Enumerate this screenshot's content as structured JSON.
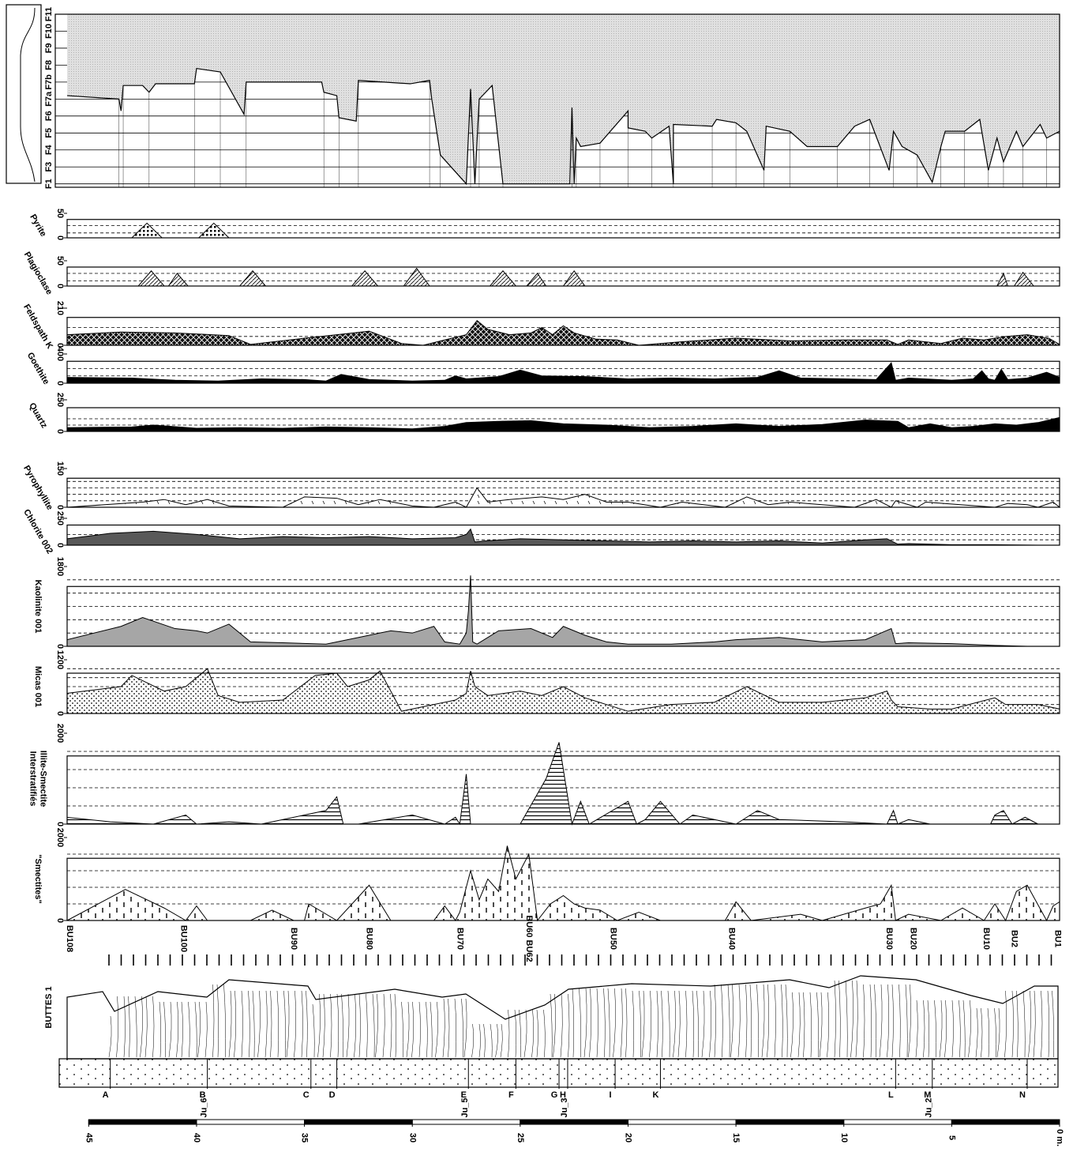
{
  "chart_data": [
    {
      "type": "facies",
      "xlim": [
        46,
        0
      ],
      "ylim": [
        0.8,
        11
      ],
      "yticks": [
        {
          "value": 1,
          "label": "F1"
        },
        {
          "value": 2,
          "label": "F3"
        },
        {
          "value": 3,
          "label": "F4"
        },
        {
          "value": 4,
          "label": "F5"
        },
        {
          "value": 5,
          "label": "F6"
        },
        {
          "value": 6,
          "label": "F7a"
        },
        {
          "value": 7,
          "label": "F7b"
        },
        {
          "value": 8,
          "label": "F8"
        },
        {
          "value": 9,
          "label": "F9"
        },
        {
          "value": 10,
          "label": "F10"
        },
        {
          "value": 11,
          "label": "F11"
        }
      ],
      "color": "#d9d9d9",
      "x": [
        46,
        43.6,
        43.5,
        43.4,
        42.5,
        42.2,
        41.9,
        40.1,
        40.0,
        38.9,
        37.8,
        37.7,
        34.2,
        34.1,
        33.5,
        33.4,
        32.6,
        32.5,
        30.1,
        29.2,
        29.1,
        28.7,
        27.5,
        27.3,
        27.1,
        26.9,
        26.3,
        25.8,
        22.7,
        22.6,
        22.5,
        22.4,
        22.2,
        21.3,
        20.0,
        20.0,
        19.2,
        18.9,
        18.1,
        17.9,
        17.9,
        16.1,
        15.9,
        15.0,
        14.5,
        13.7,
        13.6,
        12.5,
        11.7,
        10.3,
        9.5,
        8.8,
        7.9,
        7.7,
        7.3,
        6.6,
        5.9,
        5.5,
        5.3,
        4.4,
        3.7,
        3.3,
        2.9,
        2.6,
        2.0,
        1.7,
        0.9,
        0.6,
        0
      ],
      "values": [
        6.2,
        6.0,
        5.3,
        6.8,
        6.8,
        6.4,
        6.9,
        6.9,
        7.8,
        7.6,
        5.1,
        7.0,
        7.0,
        6.4,
        6.2,
        4.9,
        4.7,
        7.1,
        6.9,
        7.1,
        6.0,
        2.7,
        1,
        6.6,
        1,
        6.0,
        6.8,
        1,
        1,
        5.5,
        1,
        3.7,
        3.2,
        3.4,
        5.3,
        4.3,
        4.1,
        3.7,
        4.4,
        1,
        4.5,
        4.4,
        4.8,
        4.6,
        4.1,
        1.8,
        4.4,
        4.1,
        3.2,
        3.2,
        4.4,
        4.8,
        1.8,
        4.1,
        3.2,
        2.7,
        1.1,
        3.2,
        4.1,
        4.1,
        4.8,
        1.8,
        3.7,
        2.3,
        4.1,
        3.2,
        4.5,
        3.7,
        4.1
      ]
    },
    {
      "type": "area",
      "label": [
        "Pyrite"
      ],
      "xlim": [
        46,
        0
      ],
      "ylim": [
        0,
        50
      ],
      "yticks": [
        0,
        50
      ],
      "gridlines": [
        10,
        25
      ],
      "color": "#ffffff",
      "pattern": "dots-dense",
      "x": [
        46,
        43.0,
        42.3,
        41.6,
        39.9,
        39.2,
        38.5,
        0
      ],
      "values": [
        0,
        0,
        30,
        0,
        0,
        30,
        0,
        0
      ]
    },
    {
      "type": "area",
      "label": [
        "Plagioclase"
      ],
      "xlim": [
        46,
        0
      ],
      "ylim": [
        0,
        50
      ],
      "yticks": [
        0,
        50
      ],
      "gridlines": [
        10,
        25
      ],
      "color": "#ffffff",
      "pattern": "hatch",
      "x": [
        46,
        42.7,
        42.1,
        41.5,
        41.3,
        40.9,
        40.4,
        38.0,
        37.4,
        36.8,
        32.8,
        32.2,
        31.6,
        30.4,
        29.8,
        29.2,
        26.4,
        25.8,
        25.2,
        24.7,
        24.2,
        23.8,
        23.0,
        22.5,
        22.0,
        2.9,
        2.6,
        2.4,
        2.1,
        1.7,
        1.2,
        0
      ],
      "values": [
        0,
        0,
        30,
        0,
        0,
        25,
        0,
        0,
        30,
        0,
        0,
        30,
        0,
        0,
        35,
        0,
        0,
        30,
        0,
        0,
        25,
        0,
        0,
        30,
        0,
        0,
        25,
        0,
        0,
        27,
        0,
        0
      ]
    },
    {
      "type": "area",
      "label": [
        "Feldspath K"
      ],
      "xlim": [
        46,
        0
      ],
      "ylim": [
        0,
        210
      ],
      "yticks": [
        0,
        210
      ],
      "gridlines": [
        50,
        100
      ],
      "color": "#111111",
      "pattern": "cross",
      "x": [
        46,
        43.5,
        41,
        38.5,
        37.5,
        35,
        33.5,
        32,
        30.5,
        29.5,
        28.5,
        27.5,
        27,
        26.5,
        25.5,
        24.5,
        24,
        23.5,
        23,
        22.5,
        21.5,
        20.5,
        19.5,
        17.5,
        15,
        12.5,
        10,
        8,
        7.5,
        7,
        5.5,
        4.5,
        3.5,
        2.5,
        1.5,
        0.5,
        0
      ],
      "values": [
        60,
        75,
        70,
        55,
        5,
        40,
        60,
        80,
        10,
        0,
        30,
        60,
        140,
        90,
        60,
        70,
        100,
        60,
        110,
        70,
        35,
        30,
        0,
        20,
        40,
        25,
        30,
        30,
        5,
        30,
        10,
        40,
        30,
        50,
        60,
        40,
        5
      ]
    },
    {
      "type": "area",
      "label": [
        "Goethite"
      ],
      "xlim": [
        46,
        0
      ],
      "ylim": [
        0,
        400
      ],
      "yticks": [
        0,
        400
      ],
      "gridlines": [
        100,
        200
      ],
      "color": "#000000",
      "pattern": "none",
      "x": [
        46,
        43,
        41,
        39,
        37,
        35,
        34,
        33.3,
        32,
        30,
        28.5,
        28,
        27.5,
        26,
        25,
        24,
        22,
        20,
        18,
        16,
        14,
        13,
        12,
        10,
        8.5,
        7.8,
        7.6,
        7,
        5,
        4,
        3.6,
        3.3,
        3,
        2.7,
        2.4,
        1.5,
        0.6,
        0
      ],
      "values": [
        80,
        70,
        40,
        30,
        60,
        50,
        30,
        120,
        50,
        30,
        40,
        100,
        60,
        90,
        180,
        100,
        90,
        60,
        70,
        60,
        80,
        170,
        70,
        60,
        50,
        280,
        40,
        70,
        40,
        60,
        170,
        60,
        40,
        190,
        50,
        70,
        150,
        80
      ]
    },
    {
      "type": "area",
      "label": [
        "Quartz"
      ],
      "xlim": [
        46,
        0
      ],
      "ylim": [
        0,
        250
      ],
      "yticks": [
        0,
        250
      ],
      "gridlines": [
        50,
        100
      ],
      "color": "#000000",
      "pattern": "none",
      "x": [
        46,
        43,
        42,
        40,
        38,
        36,
        34,
        32,
        30,
        28.5,
        27.5,
        26,
        24.5,
        23,
        21,
        19,
        17,
        15,
        13,
        11,
        9,
        7.5,
        7,
        6,
        5,
        4,
        3,
        2,
        1,
        0
      ],
      "values": [
        30,
        35,
        50,
        25,
        30,
        25,
        35,
        30,
        20,
        40,
        70,
        80,
        85,
        60,
        50,
        30,
        40,
        60,
        40,
        55,
        90,
        80,
        30,
        60,
        30,
        40,
        60,
        50,
        70,
        110
      ]
    },
    {
      "type": "area",
      "label": [
        "Pyrophyllite"
      ],
      "xlim": [
        46,
        0
      ],
      "ylim": [
        0,
        150
      ],
      "yticks": [
        0,
        150
      ],
      "gridlines": [
        25,
        50,
        75,
        100
      ],
      "color": "#ffffff",
      "pattern": "dashes",
      "x": [
        46,
        42.5,
        41.5,
        40.5,
        39.5,
        38.5,
        36,
        35,
        33.5,
        32.5,
        31.5,
        30,
        29,
        28,
        27.5,
        27,
        26.5,
        25.5,
        24,
        23,
        22,
        21,
        20,
        18.5,
        17.5,
        15.5,
        14.5,
        13.5,
        12.5,
        9.5,
        8.5,
        7.8,
        7.6,
        6.6,
        6.2,
        3,
        2.4,
        1.5,
        1,
        0.3,
        0
      ],
      "values": [
        0,
        20,
        30,
        10,
        30,
        5,
        0,
        40,
        35,
        10,
        30,
        5,
        0,
        20,
        0,
        75,
        20,
        30,
        40,
        30,
        50,
        20,
        20,
        0,
        20,
        0,
        40,
        10,
        20,
        0,
        30,
        0,
        25,
        0,
        20,
        0,
        15,
        10,
        0,
        20,
        0
      ]
    },
    {
      "type": "area",
      "label": [
        "Chlorite 002"
      ],
      "xlim": [
        46,
        0
      ],
      "ylim": [
        0,
        250
      ],
      "yticks": [
        0,
        250
      ],
      "gridlines": [
        50,
        100
      ],
      "color": "#595959",
      "pattern": "none",
      "x": [
        46,
        44,
        42,
        40,
        38,
        36,
        34,
        32,
        30,
        28,
        27.5,
        27.3,
        27.1,
        26.6,
        25,
        23,
        21,
        19,
        17,
        15,
        13,
        11,
        9,
        8,
        7.5,
        7,
        5,
        3,
        1,
        0
      ],
      "values": [
        60,
        110,
        130,
        100,
        60,
        80,
        70,
        80,
        60,
        70,
        100,
        150,
        30,
        40,
        60,
        50,
        40,
        30,
        40,
        30,
        40,
        20,
        50,
        60,
        10,
        15,
        5,
        5,
        0,
        0
      ]
    },
    {
      "type": "area",
      "label": [
        "Kaolinite 001"
      ],
      "xlim": [
        46,
        0
      ],
      "ylim": [
        0,
        1800
      ],
      "yticks": [
        0,
        1800
      ],
      "gridlines": [
        300,
        600,
        900,
        1200,
        1500
      ],
      "color": "#a6a6a6",
      "pattern": "none",
      "x": [
        46,
        43.5,
        42.5,
        41,
        40,
        39.5,
        38.5,
        37.5,
        36,
        34,
        33,
        32,
        31.5,
        31,
        30,
        29,
        28.5,
        27.8,
        27.5,
        27.4,
        27.3,
        27.2,
        27.0,
        26,
        24.5,
        23.5,
        23,
        22,
        21,
        20,
        18,
        16,
        15,
        13,
        11,
        9,
        7.8,
        7.6,
        7,
        5,
        3,
        1.5,
        0
      ],
      "values": [
        150,
        450,
        650,
        400,
        350,
        300,
        500,
        100,
        80,
        50,
        150,
        250,
        300,
        350,
        300,
        450,
        100,
        50,
        300,
        800,
        1600,
        100,
        50,
        350,
        400,
        200,
        450,
        250,
        100,
        50,
        50,
        100,
        150,
        200,
        100,
        150,
        400,
        60,
        80,
        60,
        20,
        0,
        0
      ]
    },
    {
      "type": "area",
      "label": [
        "Micas 001"
      ],
      "xlim": [
        46,
        0
      ],
      "ylim": [
        0,
        1200
      ],
      "yticks": [
        0,
        1200
      ],
      "gridlines": [
        200,
        400,
        600,
        800,
        1000
      ],
      "color": "#ffffff",
      "pattern": "dots",
      "x": [
        46,
        43.5,
        43,
        41.5,
        40.5,
        39.5,
        39,
        38,
        36,
        34.5,
        33.5,
        33,
        32,
        31.5,
        30.5,
        29,
        28,
        27.5,
        27.3,
        27.1,
        26.5,
        25,
        24,
        23,
        22,
        21,
        20,
        18,
        16,
        14.5,
        13,
        11,
        9,
        8,
        7.8,
        7.5,
        6,
        5,
        3,
        2.5,
        1,
        0
      ],
      "values": [
        450,
        600,
        850,
        500,
        600,
        1000,
        400,
        250,
        300,
        850,
        900,
        600,
        750,
        950,
        50,
        200,
        300,
        450,
        950,
        600,
        400,
        500,
        400,
        600,
        350,
        200,
        50,
        200,
        250,
        600,
        250,
        250,
        350,
        500,
        300,
        150,
        100,
        100,
        350,
        200,
        200,
        100
      ]
    },
    {
      "type": "area",
      "label": [
        "Interstratifiés",
        "Illite-Smectite"
      ],
      "xlim": [
        46,
        0
      ],
      "ylim": [
        0,
        2000
      ],
      "yticks": [
        0,
        2000
      ],
      "gridlines": [
        400,
        800,
        1200,
        1600
      ],
      "color": "#ffffff",
      "pattern": "hlines",
      "x": [
        46,
        44,
        42,
        40.5,
        40,
        38.5,
        37,
        35,
        34,
        33.5,
        33.2,
        32.5,
        30,
        28.5,
        28,
        27.8,
        27.5,
        27.3,
        27.1,
        25,
        23.8,
        23.2,
        22.6,
        22.2,
        21.8,
        20,
        19.6,
        19.2,
        18.5,
        17.6,
        17,
        15,
        14,
        13,
        10,
        8,
        7.7,
        7.5,
        7,
        6,
        5,
        3.2,
        3,
        2.6,
        2.2,
        1.6,
        1,
        0
      ],
      "values": [
        150,
        50,
        0,
        200,
        0,
        50,
        0,
        200,
        300,
        600,
        0,
        0,
        200,
        0,
        150,
        0,
        1100,
        0,
        0,
        0,
        1000,
        1800,
        0,
        500,
        0,
        500,
        0,
        100,
        500,
        0,
        200,
        0,
        300,
        100,
        50,
        0,
        300,
        0,
        100,
        0,
        0,
        0,
        200,
        300,
        0,
        150,
        0,
        0
      ]
    },
    {
      "type": "area",
      "label": [
        "\"Smectites\""
      ],
      "xlim": [
        46,
        0
      ],
      "ylim": [
        0,
        2000
      ],
      "yticks": [
        0,
        2000
      ],
      "gridlines": [
        400,
        800,
        1200,
        1600
      ],
      "color": "#ffffff",
      "pattern": "vdashes",
      "x": [
        46,
        43.3,
        41.5,
        40.5,
        40,
        39.5,
        37.5,
        36.5,
        35.5,
        35,
        34.8,
        33.5,
        32,
        31,
        29,
        28.5,
        28,
        27.8,
        27.3,
        26.9,
        26.5,
        26,
        25.6,
        25.2,
        24.6,
        24.2,
        23.6,
        23,
        22.5,
        22,
        21.3,
        20.5,
        19.5,
        18.5,
        17,
        15.5,
        15,
        14.3,
        12,
        11,
        9,
        8.3,
        7.8,
        7.6,
        7,
        5.5,
        4.5,
        3.5,
        3,
        2.5,
        2,
        1.5,
        0.6,
        0.3,
        0
      ],
      "values": [
        0,
        750,
        300,
        0,
        350,
        0,
        0,
        250,
        0,
        0,
        400,
        0,
        850,
        0,
        0,
        350,
        0,
        200,
        1200,
        500,
        1000,
        700,
        1800,
        1000,
        1600,
        0,
        400,
        600,
        400,
        300,
        250,
        0,
        200,
        0,
        0,
        0,
        450,
        0,
        150,
        0,
        300,
        400,
        850,
        0,
        150,
        0,
        300,
        0,
        400,
        0,
        700,
        850,
        0,
        350,
        450
      ]
    }
  ],
  "log": {
    "well": "BUTTES 1",
    "xlim": [
      46,
      0
    ],
    "samples": [
      {
        "label": "BU108",
        "depth": 45.9
      },
      {
        "label": "BU100",
        "depth": 40.6
      },
      {
        "label": "BU90",
        "depth": 35.5
      },
      {
        "label": "BU80",
        "depth": 32.0
      },
      {
        "label": "BU70",
        "depth": 27.8
      },
      {
        "label": "BU60 BU62",
        "depth": 24.6
      },
      {
        "label": "BU50",
        "depth": 20.7
      },
      {
        "label": "BU40",
        "depth": 15.2
      },
      {
        "label": "BU30",
        "depth": 7.9
      },
      {
        "label": "BU20",
        "depth": 6.8
      },
      {
        "label": "BU10",
        "depth": 3.4
      },
      {
        "label": "BU2",
        "depth": 2.1
      },
      {
        "label": "BU1",
        "depth": 0.1
      }
    ],
    "markers": [
      {
        "label": "A",
        "depth": 44.0
      },
      {
        "label": "B",
        "depth": 39.5,
        "ju": "Ju_6"
      },
      {
        "label": "C",
        "depth": 34.7
      },
      {
        "label": "D",
        "depth": 33.5
      },
      {
        "label": "E",
        "depth": 27.4,
        "ju": "Ju_5"
      },
      {
        "label": "F",
        "depth": 25.2
      },
      {
        "label": "G",
        "depth": 23.2
      },
      {
        "label": "H",
        "depth": 22.8,
        "ju": "Ju_3"
      },
      {
        "label": "I",
        "depth": 20.6
      },
      {
        "label": "K",
        "depth": 18.5
      },
      {
        "label": "L",
        "depth": 7.6
      },
      {
        "label": "M",
        "depth": 5.9,
        "ju": "Ju_2"
      },
      {
        "label": "N",
        "depth": 1.5
      }
    ],
    "scale": [
      45,
      40,
      35,
      30,
      25,
      20,
      15,
      10,
      5,
      {
        "value": 0,
        "label": "0 m."
      }
    ]
  }
}
